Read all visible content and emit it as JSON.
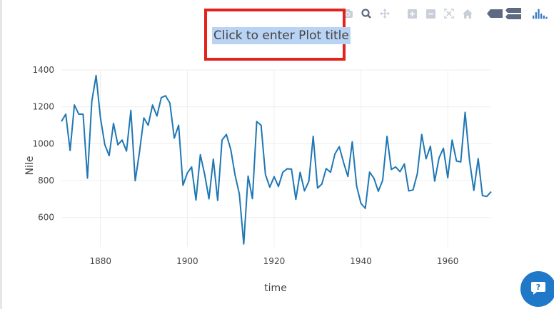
{
  "title": {
    "placeholder": "Click to enter Plot title"
  },
  "modebar": {
    "buttons": [
      {
        "name": "camera-icon"
      },
      {
        "name": "zoom-icon"
      },
      {
        "name": "pan-icon"
      },
      {
        "name": "zoom-in-icon"
      },
      {
        "name": "zoom-out-icon"
      },
      {
        "name": "autoscale-icon"
      },
      {
        "name": "home-icon"
      },
      {
        "name": "hover-closest-icon"
      },
      {
        "name": "hover-compare-icon"
      },
      {
        "name": "plotly-logo-icon"
      }
    ]
  },
  "chat": {
    "icon": "chat-help-icon",
    "color": "#1f78c8"
  },
  "colors": {
    "line": "#1f77b4",
    "grid": "#eeeeee",
    "highlight": "#e3221b"
  },
  "chart_data": {
    "type": "line",
    "title": "",
    "xlabel": "time",
    "ylabel": "Nile",
    "xlim": [
      1871,
      1970
    ],
    "ylim": [
      440,
      1400
    ],
    "xticks": [
      "1880",
      "1900",
      "1920",
      "1940",
      "1960"
    ],
    "yticks": [
      "600",
      "800",
      "1000",
      "1200",
      "1400"
    ],
    "grid": true,
    "series": [
      {
        "x": [
          1871,
          1872,
          1873,
          1874,
          1875,
          1876,
          1877,
          1878,
          1879,
          1880,
          1881,
          1882,
          1883,
          1884,
          1885,
          1886,
          1887,
          1888,
          1889,
          1890,
          1891,
          1892,
          1893,
          1894,
          1895,
          1896,
          1897,
          1898,
          1899,
          1900,
          1901,
          1902,
          1903,
          1904,
          1905,
          1906,
          1907,
          1908,
          1909,
          1910,
          1911,
          1912,
          1913,
          1914,
          1915,
          1916,
          1917,
          1918,
          1919,
          1920,
          1921,
          1922,
          1923,
          1924,
          1925,
          1926,
          1927,
          1928,
          1929,
          1930,
          1931,
          1932,
          1933,
          1934,
          1935,
          1936,
          1937,
          1938,
          1939,
          1940,
          1941,
          1942,
          1943,
          1944,
          1945,
          1946,
          1947,
          1948,
          1949,
          1950,
          1951,
          1952,
          1953,
          1954,
          1955,
          1956,
          1957,
          1958,
          1959,
          1960,
          1961,
          1962,
          1963,
          1964,
          1965,
          1966,
          1967,
          1968,
          1969,
          1970
        ],
        "values": [
          1120,
          1160,
          963,
          1210,
          1160,
          1160,
          813,
          1230,
          1370,
          1140,
          995,
          935,
          1110,
          994,
          1020,
          960,
          1180,
          799,
          958,
          1140,
          1100,
          1210,
          1150,
          1250,
          1260,
          1220,
          1030,
          1100,
          774,
          840,
          874,
          694,
          940,
          833,
          701,
          916,
          692,
          1020,
          1050,
          969,
          831,
          726,
          456,
          824,
          702,
          1120,
          1100,
          832,
          764,
          821,
          768,
          845,
          864,
          862,
          698,
          845,
          744,
          796,
          1040,
          759,
          781,
          865,
          845,
          944,
          984,
          897,
          822,
          1010,
          771,
          676,
          649,
          846,
          812,
          742,
          801,
          1040,
          860,
          874,
          848,
          890,
          744,
          749,
          838,
          1050,
          918,
          986,
          797,
          923,
          975,
          815,
          1020,
          906,
          901,
          1170,
          912,
          746,
          919,
          718,
          714,
          740
        ]
      }
    ]
  }
}
